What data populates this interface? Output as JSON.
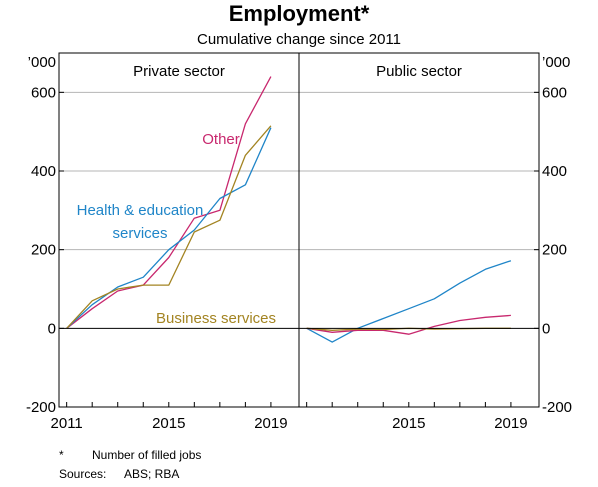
{
  "chart_data": {
    "type": "line",
    "title": "Employment*",
    "subtitle": "Cumulative change since 2011",
    "unit_label": "’000",
    "ylim": [
      -200,
      700
    ],
    "yticks": [
      -200,
      0,
      200,
      400,
      600
    ],
    "ytick_labels": [
      "-200",
      "0",
      "200",
      "400",
      "600"
    ],
    "xlim": [
      2010.7,
      2020.1
    ],
    "panels": [
      {
        "title": "Private sector",
        "xtick_values": [
          2011,
          2015,
          2019
        ],
        "xtick_labels": [
          "2011",
          "2015",
          "2019"
        ],
        "series": [
          {
            "name": "Other",
            "color": "#c8286e",
            "x": [
              2011,
              2012,
              2013,
              2014,
              2015,
              2016,
              2017,
              2018,
              2019
            ],
            "y": [
              0,
              50,
              95,
              110,
              180,
              280,
              300,
              520,
              640
            ]
          },
          {
            "name": "Health & education services",
            "color": "#1f85c8",
            "x": [
              2011,
              2012,
              2013,
              2014,
              2015,
              2016,
              2017,
              2018,
              2019
            ],
            "y": [
              0,
              60,
              105,
              130,
              200,
              250,
              330,
              365,
              510
            ]
          },
          {
            "name": "Business services",
            "color": "#a38422",
            "x": [
              2011,
              2012,
              2013,
              2014,
              2015,
              2016,
              2017,
              2018,
              2019
            ],
            "y": [
              0,
              70,
              100,
              110,
              110,
              245,
              275,
              440,
              515
            ]
          }
        ]
      },
      {
        "title": "Public sector",
        "xtick_values": [
          2015,
          2019
        ],
        "xtick_labels": [
          "2015",
          "2019"
        ],
        "series": [
          {
            "name": "Health & education services",
            "color": "#1f85c8",
            "x": [
              2011,
              2012,
              2013,
              2014,
              2015,
              2016,
              2017,
              2018,
              2019
            ],
            "y": [
              0,
              -35,
              0,
              25,
              50,
              75,
              115,
              150,
              172
            ]
          },
          {
            "name": "Other",
            "color": "#c8286e",
            "x": [
              2011,
              2012,
              2013,
              2014,
              2015,
              2016,
              2017,
              2018,
              2019
            ],
            "y": [
              0,
              -10,
              -5,
              -5,
              -15,
              5,
              20,
              28,
              33
            ]
          },
          {
            "name": "Business services",
            "color": "#a38422",
            "x": [
              2011,
              2012,
              2013,
              2014,
              2015,
              2016,
              2017,
              2018,
              2019
            ],
            "y": [
              0,
              -5,
              -2,
              -3,
              0,
              -2,
              -1,
              0,
              0
            ]
          }
        ]
      }
    ],
    "annotations": [
      {
        "text": "Other",
        "color": "#c8286e"
      },
      {
        "text": "Health & education",
        "color": "#1f85c8"
      },
      {
        "text": "services",
        "color": "#1f85c8"
      },
      {
        "text": "Business services",
        "color": "#a38422"
      }
    ],
    "footnotes": {
      "note_marker": "*",
      "note_text": "Number of filled jobs",
      "sources_label": "Sources:",
      "sources_text": "ABS; RBA"
    }
  }
}
